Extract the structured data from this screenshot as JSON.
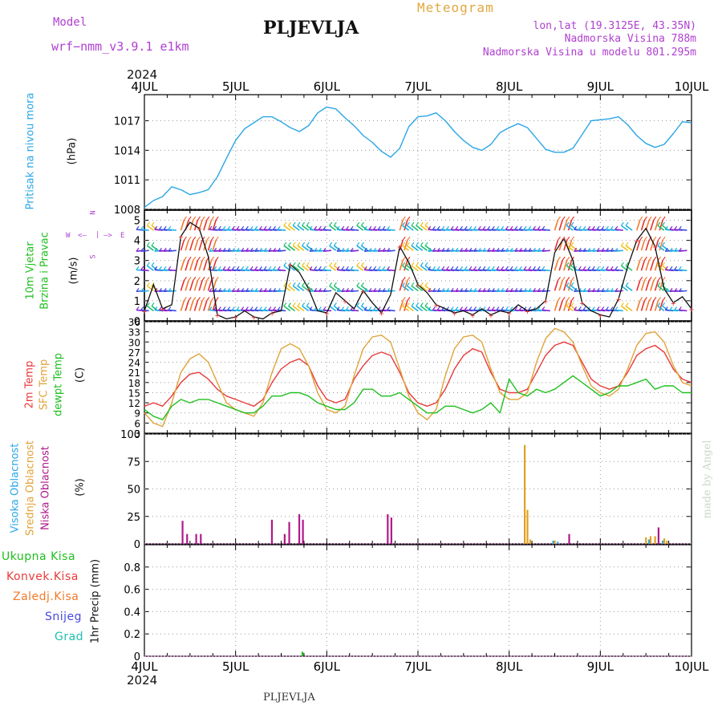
{
  "header": {
    "model_label": "Model",
    "model_name": "wrf−nmm_v3.9.1  e1km",
    "station": "PLJEVLJA",
    "meteogram": "Meteogram",
    "coords": "lon,lat (19.3125E, 43.35N)",
    "elevation": "Nadmorska Visina 788m",
    "model_elevation": "Nadmorska Visina u modelu 801.295m",
    "year_top": "2024",
    "year_bottom": "2024",
    "footer_station": "PLJEVLJA",
    "credit": "made by Angel"
  },
  "colors": {
    "pressure": "#2aa6e6",
    "temp_2m": "#e83a3a",
    "sfc_temp": "#e0a33a",
    "dewpoint": "#1fbf1f",
    "high_cloud": "#2aa6e6",
    "mid_cloud": "#e0a020",
    "low_cloud": "#b0188a",
    "total_precip": "#1fbf1f",
    "conv_precip": "#e83a3a",
    "frozen_precip": "#f07a2a",
    "snow": "#4848e0",
    "graupel": "#20c0b0",
    "wind_speed": "#101010",
    "label_purple": "#b040d0",
    "label_orange": "#e0a840"
  },
  "chart_data": {
    "type": "line",
    "x_ticks": [
      "4JUL",
      "5JUL",
      "6JUL",
      "7JUL",
      "8JUL",
      "9JUL",
      "10JUL"
    ],
    "panels": [
      {
        "id": "pressure",
        "ylabel": "Pritisak na nivou mora",
        "unit": "(hPa)",
        "ylim": [
          1008,
          1019
        ],
        "yticks": [
          1008,
          1011,
          1014,
          1017
        ],
        "series": [
          {
            "name": "Pritisak na nivou mora",
            "x": [
              0,
              0.1,
              0.2,
              0.3,
              0.4,
              0.5,
              0.6,
              0.7,
              0.8,
              0.9,
              1.0,
              1.1,
              1.2,
              1.3,
              1.4,
              1.5,
              1.6,
              1.7,
              1.8,
              1.9,
              2.0,
              2.1,
              2.2,
              2.3,
              2.4,
              2.5,
              2.6,
              2.7,
              2.8,
              2.9,
              3.0,
              3.1,
              3.2,
              3.3,
              3.4,
              3.5,
              3.6,
              3.7,
              3.8,
              3.9,
              4.0,
              4.1,
              4.2,
              4.3,
              4.4,
              4.5,
              4.6,
              4.7,
              4.8,
              4.9,
              5.0,
              5.1,
              5.2,
              5.3,
              5.4,
              5.5,
              5.6,
              5.7,
              5.8,
              5.9,
              6.0
            ],
            "y": [
              1008.2,
              1008.9,
              1009.3,
              1010.3,
              1010.0,
              1009.5,
              1009.7,
              1010.0,
              1011.3,
              1013.2,
              1015.0,
              1016.2,
              1016.8,
              1017.4,
              1017.4,
              1016.9,
              1016.3,
              1015.9,
              1016.5,
              1017.8,
              1018.4,
              1018.2,
              1017.3,
              1016.5,
              1015.5,
              1014.8,
              1013.9,
              1013.3,
              1014.2,
              1016.4,
              1017.4,
              1017.5,
              1017.8,
              1017.0,
              1015.9,
              1015.0,
              1014.3,
              1014.0,
              1014.6,
              1015.8,
              1016.3,
              1016.7,
              1016.3,
              1015.2,
              1014.1,
              1013.8,
              1013.8,
              1014.2,
              1015.6,
              1017.0,
              1017.1,
              1017.2,
              1017.4,
              1016.6,
              1015.5,
              1014.7,
              1014.3,
              1014.6,
              1015.7,
              1016.9,
              1016.8
            ]
          }
        ]
      },
      {
        "id": "wind",
        "ylabel": "10m Vjetar",
        "ylabel2": "Brzina i Pravac",
        "unit": "(m/s)",
        "compass": [
          "N",
          "—>",
          "E",
          "W",
          "<—",
          "S"
        ],
        "ylim": [
          0,
          5.5
        ],
        "yticks": [
          0,
          1,
          2,
          3,
          4,
          5
        ],
        "series": [
          {
            "name": "Brzina",
            "x": [
              0,
              0.1,
              0.2,
              0.3,
              0.4,
              0.5,
              0.6,
              0.7,
              0.8,
              0.9,
              1.0,
              1.1,
              1.2,
              1.3,
              1.4,
              1.5,
              1.6,
              1.7,
              1.8,
              1.9,
              2.0,
              2.1,
              2.2,
              2.3,
              2.4,
              2.5,
              2.6,
              2.7,
              2.8,
              2.9,
              3.0,
              3.1,
              3.2,
              3.3,
              3.4,
              3.5,
              3.6,
              3.7,
              3.8,
              3.9,
              4.0,
              4.1,
              4.2,
              4.3,
              4.4,
              4.5,
              4.6,
              4.7,
              4.8,
              4.9,
              5.0,
              5.1,
              5.2,
              5.3,
              5.4,
              5.5,
              5.6,
              5.7,
              5.8,
              5.9,
              6.0
            ],
            "y": [
              0.5,
              1.8,
              0.6,
              0.8,
              4.2,
              4.9,
              4.6,
              3.2,
              0.3,
              0.1,
              0.2,
              0.5,
              0.2,
              0.1,
              0.4,
              0.5,
              2.8,
              2.4,
              1.6,
              0.5,
              0.4,
              1.4,
              1.0,
              0.6,
              1.5,
              0.9,
              0.4,
              1.3,
              3.7,
              2.9,
              1.8,
              1.4,
              0.8,
              0.6,
              0.4,
              0.5,
              0.3,
              0.6,
              0.3,
              0.5,
              0.4,
              0.8,
              0.5,
              0.6,
              1.0,
              3.4,
              4.1,
              3.0,
              0.9,
              0.5,
              0.3,
              0.2,
              1.1,
              2.7,
              4.0,
              4.6,
              3.7,
              1.6,
              0.9,
              1.2,
              0.6
            ]
          }
        ]
      },
      {
        "id": "temperature",
        "ylabel": "2m Temp",
        "ylabel2": "SFC Temp",
        "ylabel3": "dewpt Temp",
        "unit": "(C)",
        "ylim": [
          3,
          36
        ],
        "yticks": [
          3,
          6,
          9,
          12,
          15,
          18,
          21,
          24,
          27,
          30,
          33,
          36
        ],
        "series": [
          {
            "name": "2m Temp",
            "x": [
              0,
              0.1,
              0.2,
              0.3,
              0.4,
              0.5,
              0.6,
              0.7,
              0.8,
              0.9,
              1.0,
              1.1,
              1.2,
              1.3,
              1.4,
              1.5,
              1.6,
              1.7,
              1.8,
              1.9,
              2.0,
              2.1,
              2.2,
              2.3,
              2.4,
              2.5,
              2.6,
              2.7,
              2.8,
              2.9,
              3.0,
              3.1,
              3.2,
              3.3,
              3.4,
              3.5,
              3.6,
              3.7,
              3.8,
              3.9,
              4.0,
              4.1,
              4.2,
              4.3,
              4.4,
              4.5,
              4.6,
              4.7,
              4.8,
              4.9,
              5.0,
              5.1,
              5.2,
              5.3,
              5.4,
              5.5,
              5.6,
              5.7,
              5.8,
              5.9,
              6.0
            ],
            "y": [
              11,
              12,
              11,
              14,
              18,
              20.5,
              21,
              19,
              16,
              14,
              13,
              12,
              11,
              13,
              18,
              22,
              24,
              25,
              23,
              17,
              13,
              12,
              13,
              19,
              23,
              26,
              27,
              26,
              21,
              15,
              12,
              11,
              12,
              16,
              22,
              26,
              28,
              27,
              21,
              16,
              15,
              15,
              16,
              21,
              26,
              29,
              30,
              29,
              24,
              19,
              17,
              16,
              17,
              21,
              26,
              28,
              29,
              27,
              22,
              19,
              18
            ]
          },
          {
            "name": "SFC Temp",
            "x": [
              0,
              0.1,
              0.2,
              0.3,
              0.4,
              0.5,
              0.6,
              0.7,
              0.8,
              0.9,
              1.0,
              1.1,
              1.2,
              1.3,
              1.4,
              1.5,
              1.6,
              1.7,
              1.8,
              1.9,
              2.0,
              2.1,
              2.2,
              2.3,
              2.4,
              2.5,
              2.6,
              2.7,
              2.8,
              2.9,
              3.0,
              3.1,
              3.2,
              3.3,
              3.4,
              3.5,
              3.6,
              3.7,
              3.8,
              3.9,
              4.0,
              4.1,
              4.2,
              4.3,
              4.4,
              4.5,
              4.6,
              4.7,
              4.8,
              4.9,
              5.0,
              5.1,
              5.2,
              5.3,
              5.4,
              5.5,
              5.6,
              5.7,
              5.8,
              5.9,
              6.0
            ],
            "y": [
              9,
              6,
              5,
              12,
              21,
              25,
              26.5,
              24,
              18,
              12,
              10,
              9,
              8,
              12,
              21,
              28,
              29.5,
              28,
              23,
              15,
              10,
              9,
              11,
              20,
              28,
              31.5,
              32,
              30,
              22,
              14,
              9,
              7,
              10,
              20,
              28,
              31.5,
              32,
              30,
              22,
              15,
              13,
              13,
              15,
              24,
              31,
              34,
              33,
              30,
              23,
              17,
              15,
              14,
              16,
              22,
              29,
              32.5,
              33,
              30,
              23,
              18,
              17
            ]
          },
          {
            "name": "dewpt Temp",
            "x": [
              0,
              0.1,
              0.2,
              0.3,
              0.4,
              0.5,
              0.6,
              0.7,
              0.8,
              0.9,
              1.0,
              1.1,
              1.2,
              1.3,
              1.4,
              1.5,
              1.6,
              1.7,
              1.8,
              1.9,
              2.0,
              2.1,
              2.2,
              2.3,
              2.4,
              2.5,
              2.6,
              2.7,
              2.8,
              2.9,
              3.0,
              3.1,
              3.2,
              3.3,
              3.4,
              3.5,
              3.6,
              3.7,
              3.8,
              3.9,
              4.0,
              4.1,
              4.2,
              4.3,
              4.4,
              4.5,
              4.6,
              4.7,
              4.8,
              4.9,
              5.0,
              5.1,
              5.2,
              5.3,
              5.4,
              5.5,
              5.6,
              5.7,
              5.8,
              5.9,
              6.0
            ],
            "y": [
              10,
              8,
              7,
              11,
              13,
              12,
              13,
              13,
              12,
              11,
              10,
              9,
              9,
              11,
              14,
              14,
              15,
              15,
              14,
              12,
              11,
              10,
              10,
              12,
              16,
              16,
              14,
              14,
              15,
              13,
              11,
              9,
              9,
              11,
              11,
              10,
              9,
              10,
              12,
              9,
              19,
              15,
              14,
              16,
              15,
              16,
              18,
              20,
              18,
              16,
              14,
              15,
              17,
              17,
              18,
              19,
              16,
              17,
              17,
              15,
              15
            ]
          }
        ]
      },
      {
        "id": "clouds",
        "ylabel": "Visoka Oblacnost",
        "ylabel2": "Srednja Oblacnost",
        "ylabel3": "Niska Oblacnost",
        "unit": "(%)",
        "ylim": [
          0,
          100
        ],
        "yticks": [
          0,
          25,
          50,
          75,
          100
        ],
        "series": [
          {
            "name": "Visoka Oblacnost",
            "x": [
              4.5,
              4.55,
              5.55,
              5.7
            ],
            "y": [
              3,
              2,
              4,
              3
            ]
          },
          {
            "name": "Srednja Oblacnost",
            "x": [
              4.17,
              4.2,
              4.23,
              4.5,
              5.5,
              5.55,
              5.6,
              5.7,
              5.73
            ],
            "y": [
              90,
              31,
              4,
              3,
              6,
              7,
              7,
              5,
              3
            ]
          },
          {
            "name": "Niska Oblacnost",
            "x": [
              0.4,
              0.45,
              0.55,
              0.6,
              1.38,
              1.52,
              1.57,
              1.68,
              1.72,
              2.65,
              2.69,
              4.64,
              5.62
            ],
            "y": [
              21,
              9,
              9,
              9,
              22,
              9,
              20,
              27,
              22,
              27,
              24,
              9,
              15
            ]
          }
        ]
      },
      {
        "id": "precip",
        "ylabel": "1hr Precip (mm)",
        "legend": [
          "Ukupna Kisa",
          "Konvek.Kisa",
          "Zaledj.Kisa",
          "Snijeg",
          "Grad"
        ],
        "ylim": [
          0,
          1.0
        ],
        "yticks": [
          0,
          0.2,
          0.4,
          0.6,
          0.8
        ],
        "series": [
          {
            "name": "Ukupna Kisa",
            "x": [
              1.75
            ],
            "y": [
              0.04
            ]
          }
        ]
      }
    ]
  }
}
